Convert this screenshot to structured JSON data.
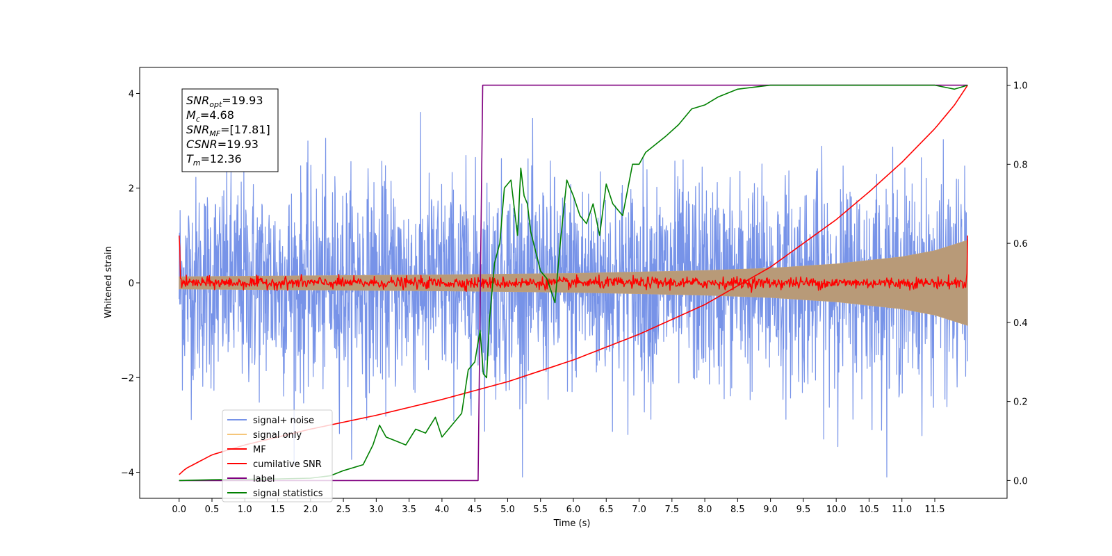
{
  "chart_data": {
    "type": "line",
    "title": "",
    "xlabel": "Time (s)",
    "ylabel": "Whitened strain",
    "xlim": [
      -0.6,
      12.6
    ],
    "ylim": [
      -4.55,
      4.55
    ],
    "y2lim": [
      -0.045,
      1.045
    ],
    "x_ticks": [
      0.0,
      0.5,
      1.0,
      1.5,
      2.0,
      2.5,
      3.0,
      3.5,
      4.0,
      4.5,
      5.0,
      5.5,
      6.0,
      6.5,
      7.0,
      7.5,
      8.0,
      8.5,
      9.0,
      9.5,
      10.0,
      10.5,
      11.0,
      11.5
    ],
    "x_tick_labels": [
      "0.0",
      "0.5",
      "1.0",
      "1.5",
      "2.0",
      "2.5",
      "3.0",
      "3.5",
      "4.0",
      "4.5",
      "5.0",
      "5.5",
      "6.0",
      "6.5",
      "7.0",
      "7.5",
      "8.0",
      "8.5",
      "9.0",
      "9.5",
      "10.0",
      "10.5",
      "11.0",
      "11.5"
    ],
    "y_ticks": [
      4,
      2,
      0,
      -2,
      -4
    ],
    "y_tick_labels": [
      "4",
      "2",
      "0",
      "−2",
      "−4"
    ],
    "y2_ticks": [
      1.0,
      0.8,
      0.6,
      0.4,
      0.2,
      0.0
    ],
    "y2_tick_labels": [
      "1.0",
      "0.8",
      "0.6",
      "0.4",
      "0.2",
      "0.0"
    ],
    "grid": false,
    "legend_placement": "bottom-left",
    "info_box": {
      "lines": [
        {
          "main": "SNR",
          "sub": "opt",
          "rest": "=19.93"
        },
        {
          "main": "M",
          "sub": "c",
          "rest": "=4.68"
        },
        {
          "main": "SNR",
          "sub": "MF",
          "rest": "=[17.81]"
        },
        {
          "main": "CSNR",
          "sub": "",
          "rest": "=19.93"
        },
        {
          "main": "T",
          "sub": "m",
          "rest": "=12.36"
        }
      ]
    },
    "series": [
      {
        "name": "signal+ noise",
        "color": "#7793e8",
        "axis": "left",
        "description_envelope": {
          "x_range": [
            0.0,
            12.0
          ],
          "typical_amplitude": 1.1,
          "peak_max": 4.1,
          "peak_min": -4.1
        }
      },
      {
        "name": "signal only",
        "color": "#f5c67a",
        "axis": "left",
        "envelope": {
          "x": [
            0.0,
            2.0,
            4.0,
            6.0,
            8.0,
            9.0,
            10.0,
            11.0,
            11.5,
            12.0
          ],
          "amp": [
            0.13,
            0.15,
            0.17,
            0.2,
            0.26,
            0.31,
            0.4,
            0.55,
            0.68,
            0.9
          ]
        }
      },
      {
        "name": "MF",
        "color": "#ff0000",
        "axis": "left",
        "baseline": 0.0,
        "noise_amplitude": 0.06,
        "start_value": 1.0,
        "end_value": 1.0
      },
      {
        "name": "cumilative SNR",
        "color": "#ff0000",
        "axis": "right",
        "x": [
          0.0,
          0.1,
          0.5,
          1.0,
          2.0,
          3.0,
          4.0,
          5.0,
          6.0,
          7.0,
          8.0,
          9.0,
          10.0,
          10.5,
          11.0,
          11.5,
          11.8,
          12.0
        ],
        "values": [
          0.015,
          0.03,
          0.065,
          0.09,
          0.13,
          0.165,
          0.205,
          0.25,
          0.305,
          0.37,
          0.445,
          0.54,
          0.66,
          0.73,
          0.805,
          0.89,
          0.95,
          1.0
        ]
      },
      {
        "name": "label",
        "color": "#800080",
        "axis": "right",
        "x": [
          0.0,
          4.55,
          4.62,
          12.0
        ],
        "values": [
          0.0,
          0.0,
          1.0,
          1.0
        ]
      },
      {
        "name": "signal statistics",
        "color": "#008000",
        "axis": "right",
        "x": [
          0.0,
          0.5,
          1.0,
          1.5,
          2.0,
          2.3,
          2.5,
          2.8,
          2.95,
          3.05,
          3.15,
          3.3,
          3.45,
          3.6,
          3.75,
          3.9,
          4.0,
          4.1,
          4.3,
          4.4,
          4.5,
          4.58,
          4.63,
          4.68,
          4.72,
          4.8,
          4.88,
          4.95,
          5.05,
          5.15,
          5.2,
          5.25,
          5.3,
          5.35,
          5.5,
          5.6,
          5.72,
          5.8,
          5.9,
          6.0,
          6.1,
          6.2,
          6.3,
          6.4,
          6.5,
          6.6,
          6.75,
          6.9,
          7.0,
          7.1,
          7.25,
          7.4,
          7.6,
          7.8,
          8.0,
          8.2,
          8.5,
          9.0,
          10.0,
          11.0,
          11.5,
          11.8,
          12.0
        ],
        "values": [
          0.0,
          0.002,
          0.003,
          0.004,
          0.006,
          0.012,
          0.025,
          0.04,
          0.09,
          0.14,
          0.11,
          0.1,
          0.09,
          0.13,
          0.12,
          0.16,
          0.11,
          0.13,
          0.17,
          0.28,
          0.3,
          0.38,
          0.27,
          0.26,
          0.4,
          0.55,
          0.6,
          0.74,
          0.76,
          0.62,
          0.79,
          0.72,
          0.7,
          0.63,
          0.53,
          0.51,
          0.45,
          0.6,
          0.76,
          0.72,
          0.67,
          0.65,
          0.7,
          0.62,
          0.75,
          0.7,
          0.67,
          0.8,
          0.8,
          0.83,
          0.85,
          0.87,
          0.9,
          0.94,
          0.95,
          0.97,
          0.99,
          1.0,
          1.0,
          1.0,
          1.0,
          0.99,
          1.0
        ]
      }
    ]
  },
  "legend": {
    "items": [
      {
        "label": "signal+ noise",
        "color": "#7793e8"
      },
      {
        "label": "signal only",
        "color": "#f5c67a"
      },
      {
        "label": "MF",
        "color": "#ff0000"
      },
      {
        "label": "cumilative SNR",
        "color": "#ff0000"
      },
      {
        "label": "label",
        "color": "#800080"
      },
      {
        "label": "signal statistics",
        "color": "#008000"
      }
    ]
  }
}
